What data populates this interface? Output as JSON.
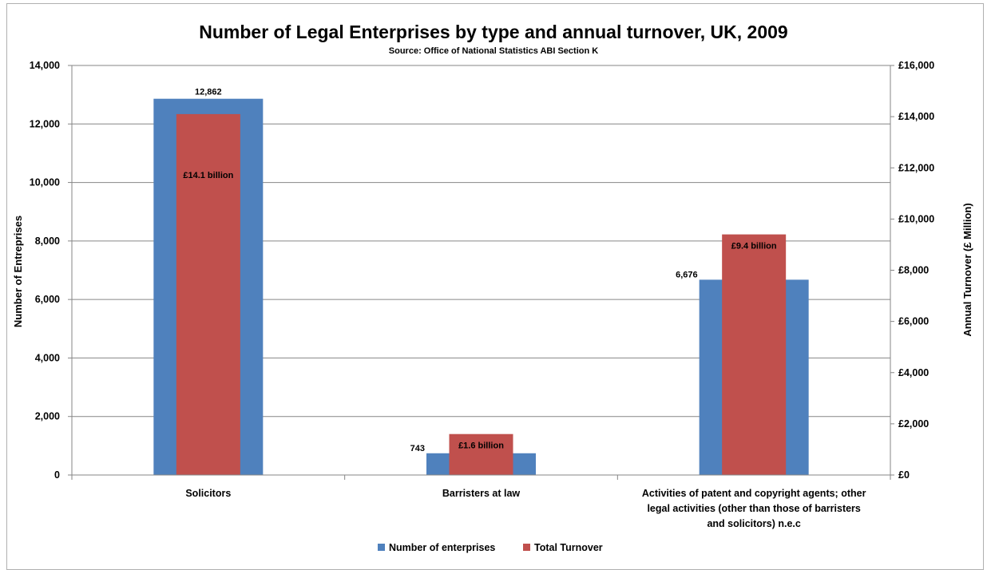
{
  "chart_data": {
    "type": "bar",
    "title": "Number of Legal Enterprises by type and annual turnover, UK, 2009",
    "subtitle": "Source: Office of National Statistics ABI Section K",
    "categories": [
      [
        "Solicitors"
      ],
      [
        "Barristers at law"
      ],
      [
        "Activities of patent and copyright agents; other",
        "legal activities (other than those of barristers",
        "and solicitors) n.e.c"
      ]
    ],
    "series": [
      {
        "name": "Number of enterprises",
        "axis": "left",
        "color": "#4f81bd",
        "values": [
          12862,
          743,
          6676
        ],
        "labels": [
          "12,862",
          "743",
          "6,676"
        ]
      },
      {
        "name": "Total Turnover",
        "axis": "right",
        "color": "#c0504d",
        "values": [
          14100,
          1600,
          9400
        ],
        "labels": [
          "£14.1 billion",
          "£1.6 billion",
          "£9.4 billion"
        ]
      }
    ],
    "y_left": {
      "label": "Number of Entreprises",
      "ylim": [
        0,
        14000
      ],
      "ticks": [
        "0",
        "2,000",
        "4,000",
        "6,000",
        "8,000",
        "10,000",
        "12,000",
        "14,000"
      ]
    },
    "y_right": {
      "label": "Annual Turnover (£ Million)",
      "ylim": [
        0,
        16000
      ],
      "ticks": [
        "£0",
        "£2,000",
        "£4,000",
        "£6,000",
        "£8,000",
        "£10,000",
        "£12,000",
        "£14,000",
        "£16,000"
      ]
    },
    "grid": true,
    "legend": "bottom"
  }
}
